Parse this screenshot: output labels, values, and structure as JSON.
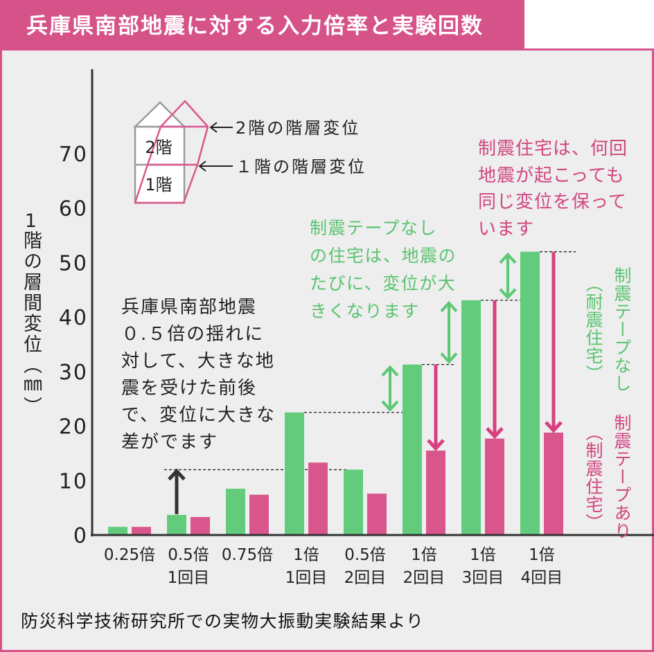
{
  "colors": {
    "brand_pink": "#d6538a",
    "panel_background": "#eeeeee",
    "green_text": "#58c46f",
    "pink_text": "#d1467f",
    "green_arrow": "#5cc874",
    "pink_arrow": "#d8407f",
    "reference_arrow": "#333333"
  },
  "diagram": {
    "floor2_label": "2階",
    "floor1_label": "1階",
    "floor2_drift": "2階の階層変位",
    "floor1_drift": "１階の階層変位"
  },
  "annotations": {
    "black": [
      "兵庫県南部地震",
      "０.５倍の揺れに",
      "対して、大きな地",
      "震を受けた前後",
      "で、変位に大きな",
      "差がでます"
    ],
    "green": [
      "制震テープなし",
      "の住宅は、地震の",
      "たびに、変位が大",
      "きくなります"
    ],
    "pink": [
      "制震住宅は、何回",
      "地震が起こっても",
      "同じ変位を保って",
      "います"
    ]
  },
  "footer": "防災科学技術研究所での実物大振動実験結果より",
  "chart_data": {
    "type": "bar",
    "title": "兵庫県南部地震に対する入力倍率と実験回数",
    "ylabel": "1階の層間変位（㎜）",
    "ylim": [
      0,
      85.5
    ],
    "yticks": [
      0,
      10,
      20,
      30,
      40,
      50,
      60,
      70
    ],
    "grid": false,
    "legend": "right",
    "categories": [
      [
        "0.25倍"
      ],
      [
        "0.5倍",
        "1回目"
      ],
      [
        "0.75倍"
      ],
      [
        "1倍",
        "1回目"
      ],
      [
        "0.5倍",
        "2回目"
      ],
      [
        "1倍",
        "2回目"
      ],
      [
        "1倍",
        "3回目"
      ],
      [
        "1倍",
        "4回目"
      ]
    ],
    "series": [
      {
        "name": "制震テープなし",
        "note": "（耐震住宅）",
        "color": "#62cc7c",
        "values": [
          1.5,
          3.7,
          8.5,
          22.5,
          12,
          31.3,
          43.1,
          52
        ]
      },
      {
        "name": "制震テープあり",
        "note": "（制震住宅）",
        "color": "#d9568d",
        "values": [
          1.5,
          3.3,
          7.4,
          13.3,
          7.6,
          15.5,
          17.7,
          18.8
        ]
      }
    ]
  }
}
